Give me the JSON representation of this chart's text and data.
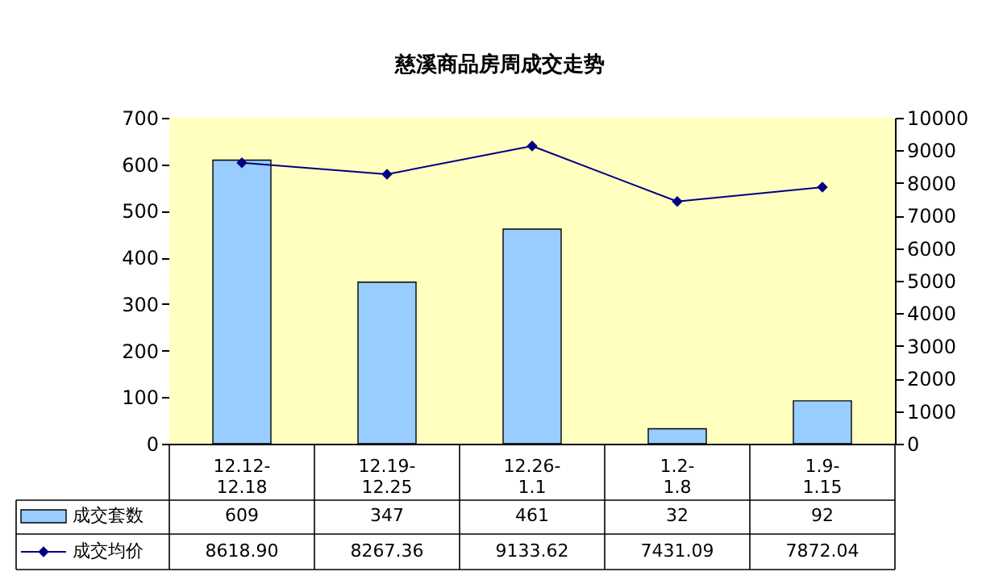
{
  "chart_data": {
    "type": "bar",
    "title": "慈溪商品房周成交走势",
    "categories": [
      "12.12-12.18",
      "12.19-12.25",
      "12.26-1.1",
      "1.2-1.8",
      "1.9-1.15"
    ],
    "series": [
      {
        "name": "成交套数",
        "color": "#99ccff",
        "values": [
          609,
          347,
          461,
          32,
          92
        ]
      },
      {
        "name": "成交均价",
        "type": "line",
        "axis": "y2",
        "color": "#000080",
        "marker": "diamond",
        "values": [
          8618.9,
          8267.36,
          9133.62,
          7431.09,
          7872.04
        ],
        "value_labels": [
          "8618.90",
          "8267.36",
          "9133.62",
          "7431.09",
          "7872.04"
        ]
      }
    ],
    "ylim": [
      0,
      700
    ],
    "yticks": [
      0,
      100,
      200,
      300,
      400,
      500,
      600,
      700
    ],
    "y2lim": [
      0,
      10000
    ],
    "y2ticks": [
      0,
      1000,
      2000,
      3000,
      4000,
      5000,
      6000,
      7000,
      8000,
      9000,
      10000
    ],
    "data_labels": true,
    "legend": "bottom"
  }
}
